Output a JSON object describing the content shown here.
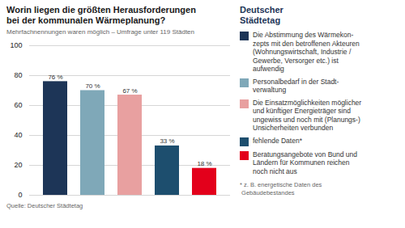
{
  "chart_data": {
    "type": "bar",
    "title": "Worin liegen die größten Herausforderungen\nbei der kommunalen Wärmeplanung?",
    "subtitle": "Mehrfachnennungen waren möglich – Umfrage unter 119 Städten",
    "source": "Quelle: Deutscher Städtetag",
    "footnote": "* z. B. energetische Daten des\n Gebäudebestandes",
    "annotations": [
      "Deutscher\nStädtetag"
    ],
    "categories": [
      "Die Abstimmung des Wärmekon-\nzepts mit den betroffenen Akteuren\n(Wohnungswirtschaft, Industrie /\nGewerbe, Versorger etc.) ist\naufwendig",
      "Personalbedarf in der Stadt-\nverwaltung",
      "Die Einsatzmöglichkeiten möglicher\nund künftiger Energieträger sind\nungewiss und noch mit (Planungs-)\nUnsicherheiten verbunden",
      "fehlende Daten*",
      "Beratungsangebote von Bund und\nLändern für Kommunen reichen\nnoch nicht aus"
    ],
    "values": [
      76,
      70,
      67,
      33,
      18
    ],
    "value_labels": [
      "76 %",
      "70 %",
      "67 %",
      "33 %",
      "18 %"
    ],
    "colors": [
      "#1d3557",
      "#7fa8b8",
      "#e8a0a0",
      "#1d4e6e",
      "#e3001b"
    ],
    "ylim": [
      0,
      100
    ],
    "yticks": [
      0,
      20,
      40,
      60,
      80,
      100
    ],
    "grid": true,
    "data_labels": true,
    "tick_labels": "y",
    "legend": "right"
  }
}
